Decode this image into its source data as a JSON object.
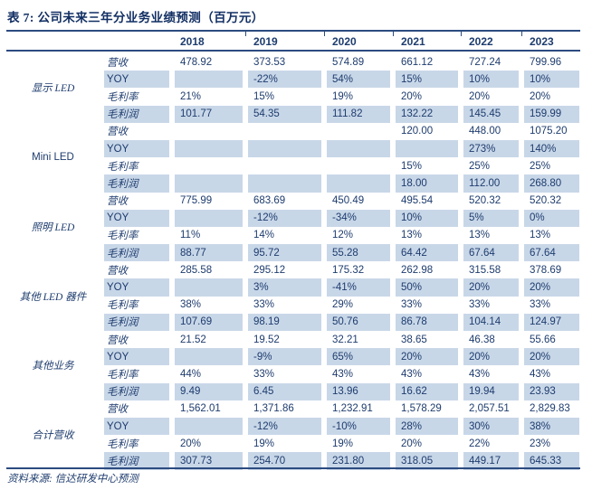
{
  "title": "表 7: 公司未来三年分业务业绩预测（百万元）",
  "source": "资料来源: 信达研发中心预测",
  "columns": [
    "2018",
    "2019",
    "2020",
    "2021",
    "2022",
    "2023"
  ],
  "colors": {
    "text_navy": "#1e3c6e",
    "title_navy": "#122f63",
    "rule_navy": "#2c4b80",
    "stripe_blue": "#c8d7e8",
    "background": "#ffffff"
  },
  "groups": [
    {
      "name": "显示 LED",
      "rows": [
        {
          "label": "营收",
          "values": [
            "478.92",
            "373.53",
            "574.89",
            "661.12",
            "727.24",
            "799.96"
          ]
        },
        {
          "label": "YOY",
          "values": [
            "",
            "-22%",
            "54%",
            "15%",
            "10%",
            "10%"
          ]
        },
        {
          "label": "毛利率",
          "values": [
            "21%",
            "15%",
            "19%",
            "20%",
            "20%",
            "20%"
          ]
        },
        {
          "label": "毛利润",
          "values": [
            "101.77",
            "54.35",
            "111.82",
            "132.22",
            "145.45",
            "159.99"
          ]
        }
      ]
    },
    {
      "name": "Mini LED",
      "rows": [
        {
          "label": "营收",
          "values": [
            "",
            "",
            "",
            "120.00",
            "448.00",
            "1075.20"
          ]
        },
        {
          "label": "YOY",
          "values": [
            "",
            "",
            "",
            "",
            "273%",
            "140%"
          ]
        },
        {
          "label": "毛利率",
          "values": [
            "",
            "",
            "",
            "15%",
            "25%",
            "25%"
          ]
        },
        {
          "label": "毛利润",
          "values": [
            "",
            "",
            "",
            "18.00",
            "112.00",
            "268.80"
          ]
        }
      ]
    },
    {
      "name": "照明 LED",
      "rows": [
        {
          "label": "营收",
          "values": [
            "775.99",
            "683.69",
            "450.49",
            "495.54",
            "520.32",
            "520.32"
          ]
        },
        {
          "label": "YOY",
          "values": [
            "",
            "-12%",
            "-34%",
            "10%",
            "5%",
            "0%"
          ]
        },
        {
          "label": "毛利率",
          "values": [
            "11%",
            "14%",
            "12%",
            "13%",
            "13%",
            "13%"
          ]
        },
        {
          "label": "毛利润",
          "values": [
            "88.77",
            "95.72",
            "55.28",
            "64.42",
            "67.64",
            "67.64"
          ]
        }
      ]
    },
    {
      "name": "其他 LED 器件",
      "rows": [
        {
          "label": "营收",
          "values": [
            "285.58",
            "295.12",
            "175.32",
            "262.98",
            "315.58",
            "378.69"
          ]
        },
        {
          "label": "YOY",
          "values": [
            "",
            "3%",
            "-41%",
            "50%",
            "20%",
            "20%"
          ]
        },
        {
          "label": "毛利率",
          "values": [
            "38%",
            "33%",
            "29%",
            "33%",
            "33%",
            "33%"
          ]
        },
        {
          "label": "毛利润",
          "values": [
            "107.69",
            "98.19",
            "50.76",
            "86.78",
            "104.14",
            "124.97"
          ]
        }
      ]
    },
    {
      "name": "其他业务",
      "rows": [
        {
          "label": "营收",
          "values": [
            "21.52",
            "19.52",
            "32.21",
            "38.65",
            "46.38",
            "55.66"
          ]
        },
        {
          "label": "YOY",
          "values": [
            "",
            "-9%",
            "65%",
            "20%",
            "20%",
            "20%"
          ]
        },
        {
          "label": "毛利率",
          "values": [
            "44%",
            "33%",
            "43%",
            "43%",
            "43%",
            "43%"
          ]
        },
        {
          "label": "毛利润",
          "values": [
            "9.49",
            "6.45",
            "13.96",
            "16.62",
            "19.94",
            "23.93"
          ]
        }
      ]
    },
    {
      "name": "合计营收",
      "rows": [
        {
          "label": "营收",
          "values": [
            "1,562.01",
            "1,371.86",
            "1,232.91",
            "1,578.29",
            "2,057.51",
            "2,829.83"
          ]
        },
        {
          "label": "YOY",
          "values": [
            "",
            "-12%",
            "-10%",
            "28%",
            "30%",
            "38%"
          ]
        },
        {
          "label": "毛利率",
          "values": [
            "20%",
            "19%",
            "19%",
            "20%",
            "22%",
            "23%"
          ]
        },
        {
          "label": "毛利润",
          "values": [
            "307.73",
            "254.70",
            "231.80",
            "318.05",
            "449.17",
            "645.33"
          ]
        }
      ]
    }
  ]
}
